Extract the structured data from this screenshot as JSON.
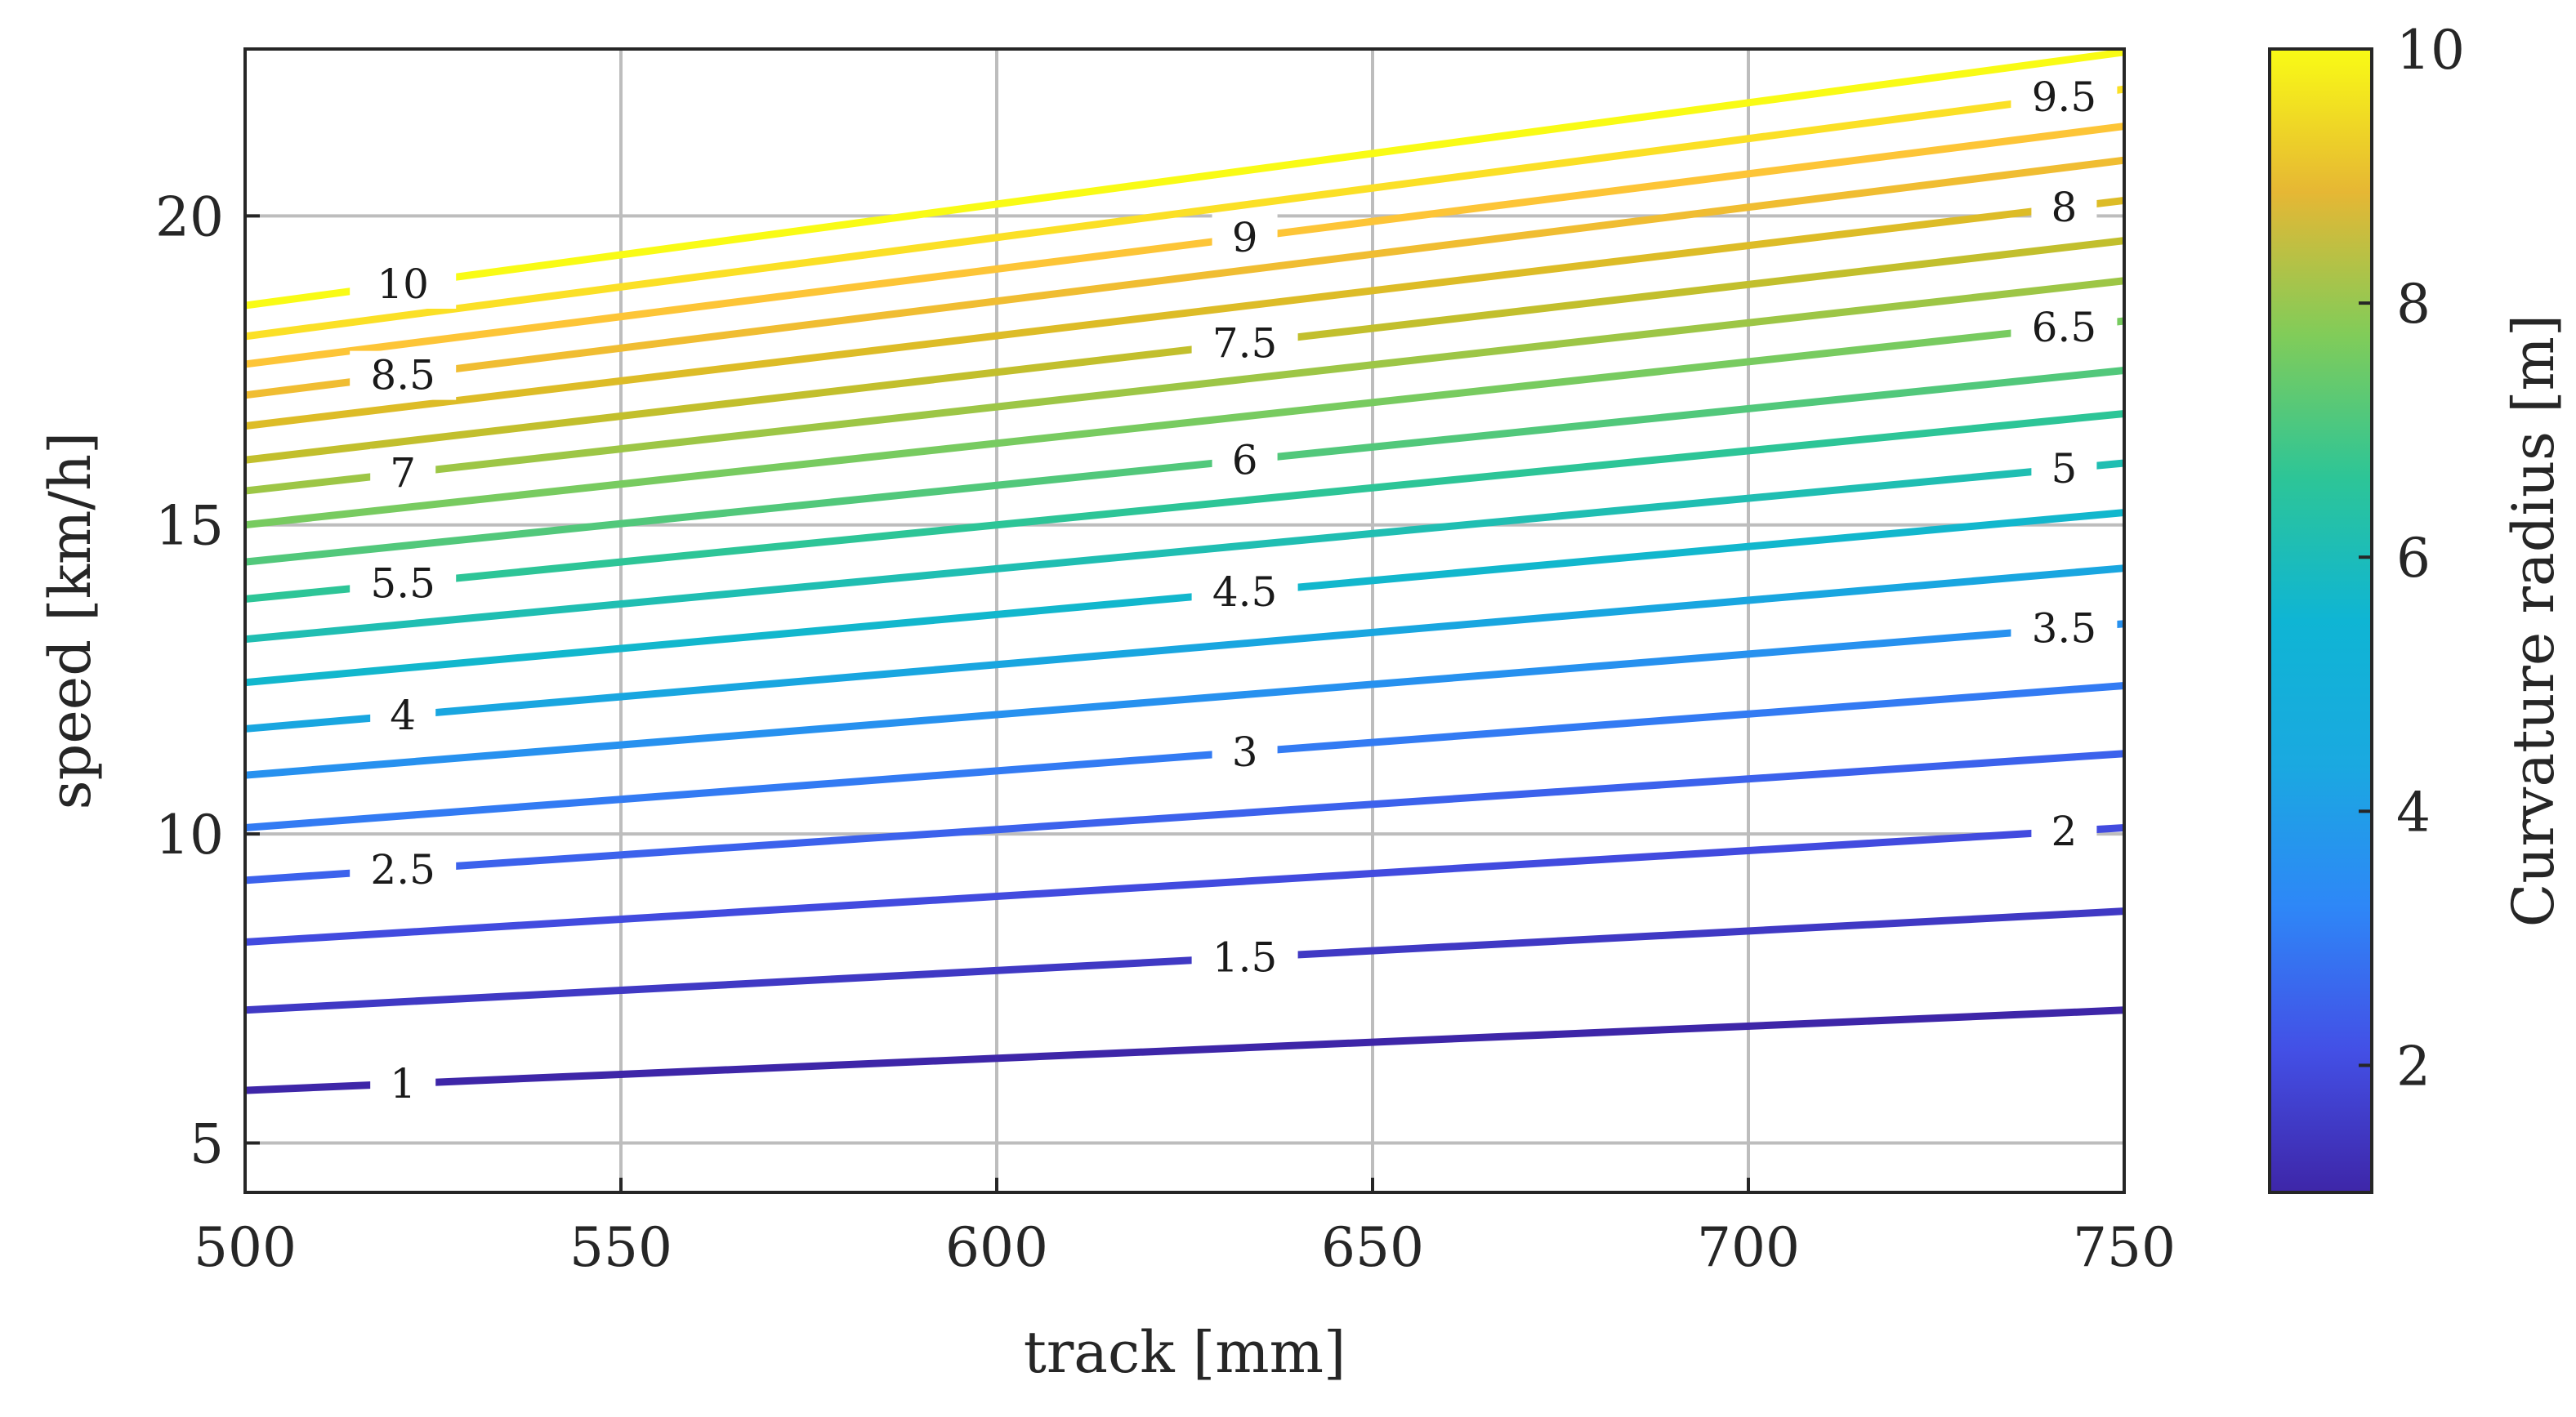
{
  "chart_data": {
    "type": "contour",
    "xlabel": "track [mm]",
    "ylabel": "speed [km/h]",
    "colorbar_label": "Curvature radius [m]",
    "xlim": [
      500,
      750
    ],
    "ylim": [
      4.2,
      22.7
    ],
    "xticks": [
      "500",
      "550",
      "600",
      "650",
      "700",
      "750"
    ],
    "yticks": [
      "5",
      "10",
      "15",
      "20"
    ],
    "colorbar_ticks": [
      "2",
      "4",
      "6",
      "8",
      "10"
    ],
    "colorbar_range": [
      1,
      10
    ],
    "grid": true,
    "levels": [
      {
        "value": 1,
        "label": "1",
        "y_start": 5.85,
        "y_end": 7.15,
        "label_x": 521
      },
      {
        "value": 1.5,
        "label": "1.5",
        "y_start": 7.15,
        "y_end": 8.75,
        "label_x": 633
      },
      {
        "value": 2,
        "label": "2",
        "y_start": 8.25,
        "y_end": 10.1,
        "label_x": 742
      },
      {
        "value": 2.5,
        "label": "2.5",
        "y_start": 9.25,
        "y_end": 11.3,
        "label_x": 521
      },
      {
        "value": 3,
        "label": "3",
        "y_start": 10.1,
        "y_end": 12.4,
        "label_x": 633
      },
      {
        "value": 3.5,
        "label": "3.5",
        "y_start": 10.95,
        "y_end": 13.4,
        "label_x": 742
      },
      {
        "value": 4,
        "label": "4",
        "y_start": 11.7,
        "y_end": 14.3,
        "label_x": 521
      },
      {
        "value": 4.5,
        "label": "4.5",
        "y_start": 12.45,
        "y_end": 15.2,
        "label_x": 633
      },
      {
        "value": 5,
        "label": "5",
        "y_start": 13.15,
        "y_end": 16.0,
        "label_x": 742
      },
      {
        "value": 5.5,
        "label": "5.5",
        "y_start": 13.8,
        "y_end": 16.8,
        "label_x": 521
      },
      {
        "value": 6,
        "label": "6",
        "y_start": 14.4,
        "y_end": 17.5,
        "label_x": 633
      },
      {
        "value": 6.5,
        "label": "6.5",
        "y_start": 15.0,
        "y_end": 18.3,
        "label_x": 742
      },
      {
        "value": 7,
        "label": "7",
        "y_start": 15.55,
        "y_end": 18.95,
        "label_x": 521
      },
      {
        "value": 7.5,
        "label": "7.5",
        "y_start": 16.05,
        "y_end": 19.6,
        "label_x": 633
      },
      {
        "value": 8,
        "label": "8",
        "y_start": 16.6,
        "y_end": 20.25,
        "label_x": 742
      },
      {
        "value": 8.5,
        "label": "8.5",
        "y_start": 17.1,
        "y_end": 20.9,
        "label_x": 521
      },
      {
        "value": 9,
        "label": "9",
        "y_start": 17.6,
        "y_end": 21.45,
        "label_x": 633
      },
      {
        "value": 9.5,
        "label": "9.5",
        "y_start": 18.05,
        "y_end": 22.05,
        "label_x": 742
      },
      {
        "value": 10,
        "label": "10",
        "y_start": 18.55,
        "y_end": 22.65,
        "label_x": 521
      }
    ],
    "colormap": [
      "#3e26a8",
      "#4350e6",
      "#2e87f7",
      "#0fb5d4",
      "#2dc597",
      "#81cc59",
      "#d4bb21",
      "#febe3b",
      "#f9fb15"
    ]
  }
}
